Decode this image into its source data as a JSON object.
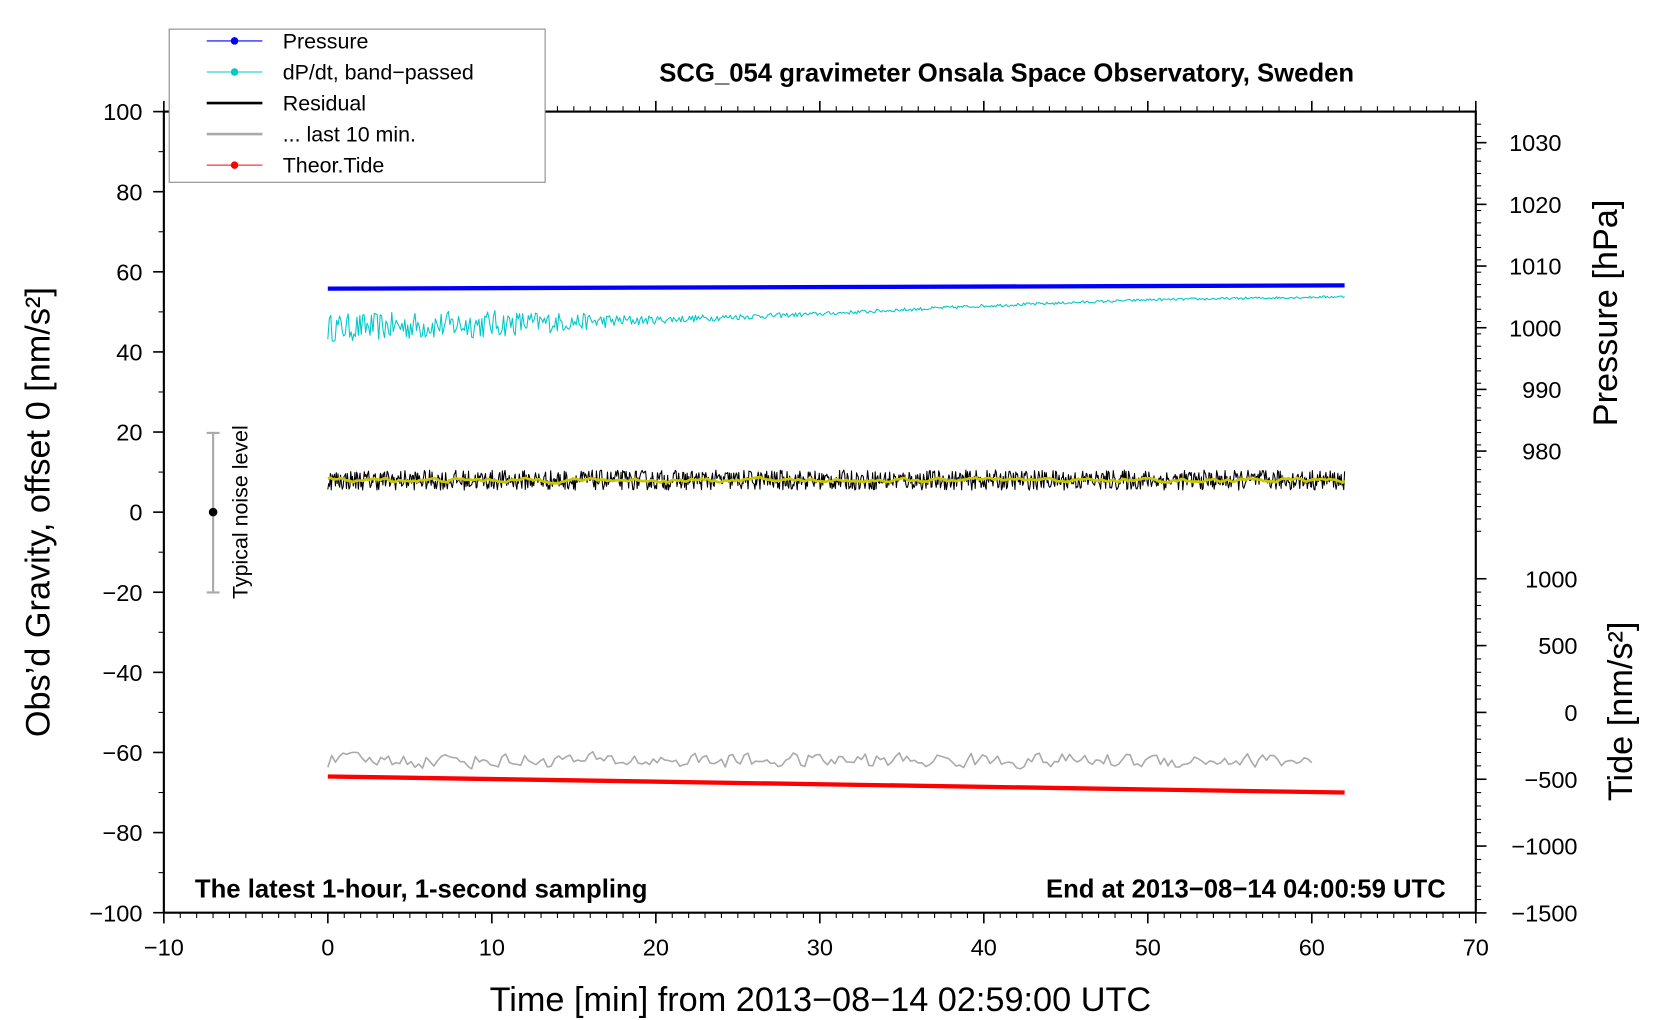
{
  "chart_data": {
    "type": "line",
    "title": "SCG_054 gravimeter Onsala Space Observatory, Sweden",
    "xlabel": "Time [min] from 2013−08−14 02:59:00 UTC",
    "ylabel": "Obs’d Gravity, offset 0 [nm/s²]",
    "ylabel_right_top": "Pressure [hPa]",
    "ylabel_right_bottom": "Tide [nm/s²]",
    "xlim": [
      -10,
      70
    ],
    "ylim": [
      -100,
      100
    ],
    "xticks": [
      "−10",
      "0",
      "10",
      "20",
      "30",
      "40",
      "50",
      "60",
      "70"
    ],
    "yticks": [
      "100",
      "80",
      "60",
      "40",
      "20",
      "0",
      "−20",
      "−40",
      "−60",
      "−80",
      "−100"
    ],
    "pressure_ticks": [
      "1030",
      "1020",
      "1010",
      "1000",
      "990",
      "980"
    ],
    "tide_ticks": [
      "1000",
      "500",
      "0",
      "−500",
      "−1000",
      "−1500"
    ],
    "annotation_left": "The latest 1-hour, 1-second sampling",
    "annotation_right": "End at 2013−08−14 04:00:59 UTC",
    "noise_label": "Typical noise level",
    "noise_bar": {
      "x": -7,
      "center": 0,
      "low": -20,
      "high": 20
    },
    "legend": {
      "placement": "top-left",
      "entries": [
        {
          "label": "Pressure",
          "color": "#0000ff"
        },
        {
          "label": "dP/dt, band−passed",
          "color": "#00c8c8"
        },
        {
          "label": "Residual",
          "color": "#000000"
        },
        {
          "label": "... last 10 min.",
          "color": "#aaaaaa"
        },
        {
          "label": "Theor.Tide",
          "color": "#ff0000"
        }
      ]
    },
    "series": [
      {
        "name": "Pressure",
        "color": "#0000ff",
        "x": [
          0,
          62
        ],
        "y": [
          55.8,
          56.6
        ],
        "noise": 0
      },
      {
        "name": "dP/dt, band-passed",
        "color": "#00c8c8",
        "x": [
          0,
          10,
          20,
          30,
          40,
          50,
          62
        ],
        "y": [
          46,
          47,
          48,
          49.5,
          51.5,
          53,
          53.8
        ],
        "noise": [
          3.5,
          3.5,
          1.0,
          0.5,
          0.4,
          0.3,
          0.3
        ]
      },
      {
        "name": "Residual",
        "color": "#000000",
        "x": [
          0,
          62
        ],
        "y": [
          8,
          8
        ],
        "noise": 2.5
      },
      {
        "name": "Residual smoothed",
        "color": "#c8c800",
        "x": [
          0,
          62
        ],
        "y": [
          8,
          8
        ],
        "noise": 0.6
      },
      {
        "name": "... last 10 min.",
        "color": "#aaaaaa",
        "x": [
          0,
          60
        ],
        "y": [
          -62,
          -62
        ],
        "noise": 2.5
      },
      {
        "name": "Theor.Tide",
        "color": "#ff0000",
        "x": [
          0,
          62
        ],
        "y": [
          -66,
          -70
        ],
        "noise": 0
      }
    ]
  }
}
